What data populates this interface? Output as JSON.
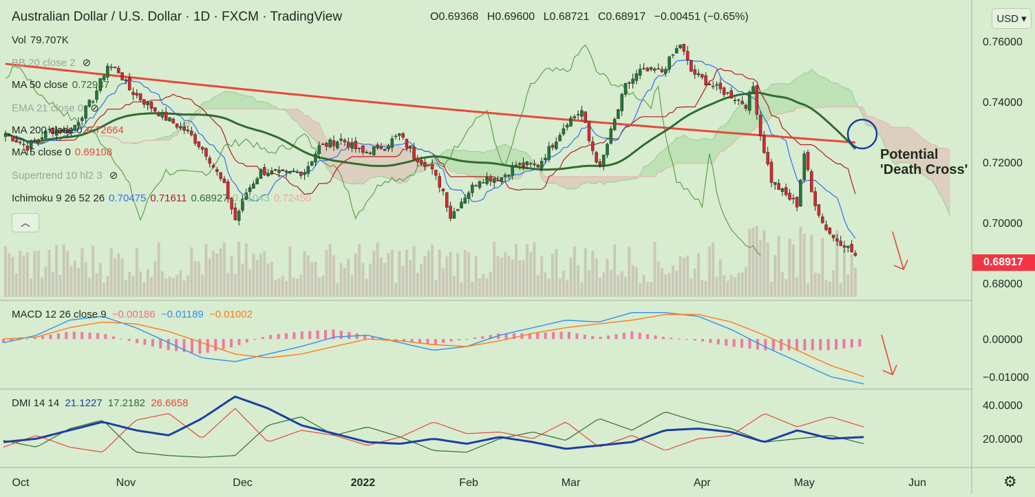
{
  "header": {
    "symbol_title": "Australian Dollar / U.S. Dollar · 1D · FXCM · TradingView",
    "ohlc": [
      {
        "label": "O",
        "value": "0.69368"
      },
      {
        "label": "H",
        "value": "0.69600"
      },
      {
        "label": "L",
        "value": "0.68721"
      },
      {
        "label": "C",
        "value": "0.68917"
      }
    ],
    "change": "−0.00451 (−0.65%)"
  },
  "currency_button": "USD ▾",
  "last_price_tag": "0.68917",
  "indicators": [
    {
      "name": "Vol",
      "values": [
        "79.707K"
      ],
      "style": "dark"
    },
    {
      "name": "BB 20 close 2",
      "values": [],
      "style": "muted"
    },
    {
      "name": "MA 50 close",
      "values": [
        "0.72937"
      ],
      "style": "dark"
    },
    {
      "name": "EMA 21 close 0",
      "values": [],
      "style": "muted"
    },
    {
      "name": "MA 200 close 0",
      "values": [
        "0.72664"
      ],
      "style": "dark"
    },
    {
      "name": "MA 5 close 0",
      "values": [
        "0.69108"
      ],
      "style": "dark"
    },
    {
      "name": "Supertrend 10 hl2 3",
      "values": [],
      "style": "muted"
    },
    {
      "name": "Ichimoku 9 26 52 26",
      "values": [
        "0.70475",
        "0.71611",
        "0.68927",
        "0.71043",
        "0.72450"
      ],
      "style": "dark"
    }
  ],
  "panes": {
    "macd_legend": {
      "name": "MACD 12 26 close 9",
      "values": [
        "−0.00186",
        "−0.01189",
        "−0.01002"
      ]
    },
    "dmi_legend": {
      "name": "DMI 14 14",
      "values": [
        "21.1227",
        "17.2182",
        "26.6658"
      ]
    }
  },
  "annotation": {
    "line1": "Potential",
    "line2": "'Death Cross'"
  },
  "colors": {
    "background": "#d8ecd0",
    "up": "#1f7a3a",
    "down": "#e0242f",
    "ma200": "#e8473a",
    "ma50": "#2f6b2f",
    "tenkan": "#2f6ff0",
    "kijun": "#b31b1b",
    "chikou": "#4f9a3a",
    "macd": "#2d8ff0",
    "signal": "#ff7a1a",
    "hist": "#f06d9b",
    "adx": "#1a3fa0",
    "di_plus": "#2f6b2f",
    "di_minus": "#e8473a",
    "volume": "#c8c2b4"
  },
  "chart_data": [
    {
      "type": "candlestick",
      "title": "Australian Dollar / U.S. Dollar · 1D · FXCM · TradingView",
      "x_ticks": [
        "Oct",
        "Nov",
        "Dec",
        "2022",
        "Feb",
        "Mar",
        "Apr",
        "May",
        "Jun"
      ],
      "y_ticks": [
        "0.76000",
        "0.74000",
        "0.72000",
        "0.70000",
        "0.68000"
      ],
      "ylim": [
        0.6755,
        0.7645
      ],
      "anchors": [
        [
          0,
          0.7295
        ],
        [
          6,
          0.725
        ],
        [
          12,
          0.7305
        ],
        [
          18,
          0.7305
        ],
        [
          24,
          0.741
        ],
        [
          28,
          0.752
        ],
        [
          31,
          0.75
        ],
        [
          34,
          0.744
        ],
        [
          38,
          0.74
        ],
        [
          44,
          0.7345
        ],
        [
          50,
          0.73
        ],
        [
          55,
          0.723
        ],
        [
          60,
          0.712
        ],
        [
          63,
          0.701
        ],
        [
          66,
          0.71
        ],
        [
          70,
          0.717
        ],
        [
          76,
          0.716
        ],
        [
          82,
          0.717
        ],
        [
          86,
          0.725
        ],
        [
          92,
          0.7275
        ],
        [
          98,
          0.723
        ],
        [
          104,
          0.7255
        ],
        [
          108,
          0.729
        ],
        [
          112,
          0.722
        ],
        [
          116,
          0.719
        ],
        [
          120,
          0.7105
        ],
        [
          122,
          0.702
        ],
        [
          126,
          0.709
        ],
        [
          130,
          0.7145
        ],
        [
          136,
          0.715
        ],
        [
          140,
          0.719
        ],
        [
          146,
          0.719
        ],
        [
          150,
          0.726
        ],
        [
          154,
          0.7335
        ],
        [
          158,
          0.737
        ],
        [
          160,
          0.727
        ],
        [
          163,
          0.718
        ],
        [
          166,
          0.73
        ],
        [
          170,
          0.745
        ],
        [
          174,
          0.75
        ],
        [
          180,
          0.75
        ],
        [
          185,
          0.759
        ],
        [
          188,
          0.75
        ],
        [
          194,
          0.745
        ],
        [
          199,
          0.742
        ],
        [
          203,
          0.739
        ],
        [
          205,
          0.745
        ],
        [
          207,
          0.729
        ],
        [
          210,
          0.714
        ],
        [
          214,
          0.709
        ],
        [
          217,
          0.706
        ],
        [
          219,
          0.723
        ],
        [
          221,
          0.71
        ],
        [
          224,
          0.7
        ],
        [
          227,
          0.695
        ],
        [
          230,
          0.693
        ],
        [
          233,
          0.6892
        ]
      ],
      "volume_range": [
        20,
        114
      ],
      "bollinger_bands": "20 close 2"
    },
    {
      "type": "line",
      "title": "MACD 12 26 close 9",
      "y_ticks": [
        "0.00000",
        "−0.01000"
      ],
      "ylim": [
        -0.0122,
        0.0075
      ],
      "series": [
        {
          "name": "MACD",
          "values": [
            -0.001,
            0.001,
            0.005,
            0.006,
            0.003,
            -0.001,
            -0.005,
            -0.006,
            -0.004,
            -0.002,
            0.0005,
            0.001,
            -0.001,
            -0.003,
            -0.002,
            0.001,
            0.003,
            0.005,
            0.0045,
            0.007,
            0.007,
            0.006,
            0.0025,
            -0.002,
            -0.006,
            -0.01,
            -0.0119
          ]
        },
        {
          "name": "Signal",
          "values": [
            0.0,
            0.0005,
            0.003,
            0.0045,
            0.004,
            0.002,
            -0.001,
            -0.004,
            -0.005,
            -0.004,
            -0.002,
            0.0,
            -0.0005,
            -0.0015,
            -0.002,
            -0.0005,
            0.0015,
            0.003,
            0.004,
            0.005,
            0.0065,
            0.0065,
            0.0045,
            0.001,
            -0.003,
            -0.007,
            -0.01
          ]
        }
      ]
    },
    {
      "type": "line",
      "title": "DMI 14 14",
      "y_ticks": [
        "40.0000",
        "20.0000"
      ],
      "ylim": [
        5,
        47
      ],
      "series": [
        {
          "name": "ADX",
          "values": [
            18,
            20,
            25,
            30,
            25,
            22,
            32,
            45,
            38,
            28,
            23,
            18,
            17,
            20,
            17,
            21,
            18,
            14,
            16,
            18,
            25,
            26,
            24,
            18,
            25,
            20,
            21
          ]
        },
        {
          "name": "+DI",
          "values": [
            19,
            15,
            26,
            31,
            12,
            10,
            9,
            10,
            28,
            33,
            22,
            27,
            21,
            13,
            12,
            20,
            24,
            19,
            32,
            25,
            36,
            30,
            26,
            18,
            20,
            22,
            17
          ]
        },
        {
          "name": "−DI",
          "values": [
            15,
            22,
            15,
            12,
            31,
            35,
            20,
            38,
            18,
            25,
            22,
            16,
            21,
            30,
            23,
            24,
            20,
            30,
            15,
            22,
            13,
            20,
            22,
            35,
            27,
            33,
            27
          ]
        }
      ]
    }
  ]
}
